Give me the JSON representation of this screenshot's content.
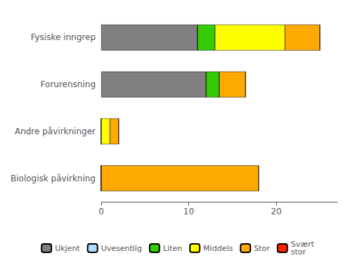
{
  "chart_data": {
    "type": "bar",
    "orientation": "horizontal",
    "stacked": true,
    "categories": [
      "Biologisk påvirkning",
      "Andre påvirkninger",
      "Forurensning",
      "Fysiske inngrep"
    ],
    "series": [
      {
        "name": "Ukjent",
        "color": "#808080",
        "values": [
          0,
          0,
          12,
          11
        ]
      },
      {
        "name": "Uvesentlig",
        "color": "#aaddff",
        "values": [
          0,
          0,
          0,
          0
        ]
      },
      {
        "name": "Liten",
        "color": "#33cc00",
        "values": [
          0,
          0,
          1.5,
          2
        ]
      },
      {
        "name": "Middels",
        "color": "#ffff00",
        "values": [
          0,
          1,
          0,
          8
        ]
      },
      {
        "name": "Stor",
        "color": "#ffaa00",
        "values": [
          18,
          1,
          3,
          4
        ]
      },
      {
        "name": "Svært\nstor",
        "color": "#ff2200",
        "values": [
          0,
          0,
          0,
          0
        ]
      }
    ],
    "xlim": [
      0,
      27
    ],
    "xticks": [
      0,
      10,
      20
    ],
    "grid": false,
    "legend": "bottom"
  }
}
